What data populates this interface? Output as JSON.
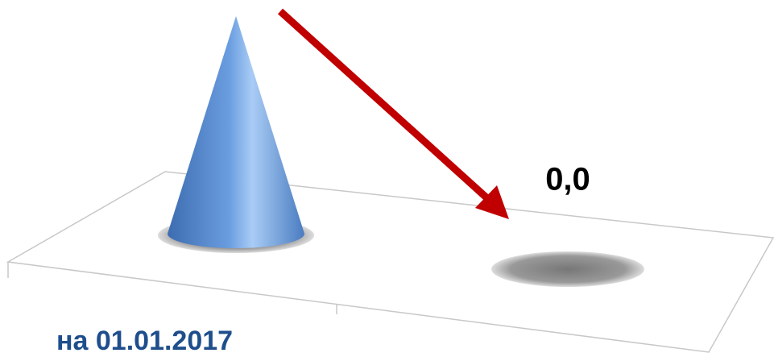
{
  "chart_data": {
    "type": "cone",
    "categories": [
      "на 01.01.2017",
      null
    ],
    "values": [
      1,
      0
    ],
    "value_labels": [
      null,
      "0,0"
    ],
    "color": "#5b8fd4"
  }
}
